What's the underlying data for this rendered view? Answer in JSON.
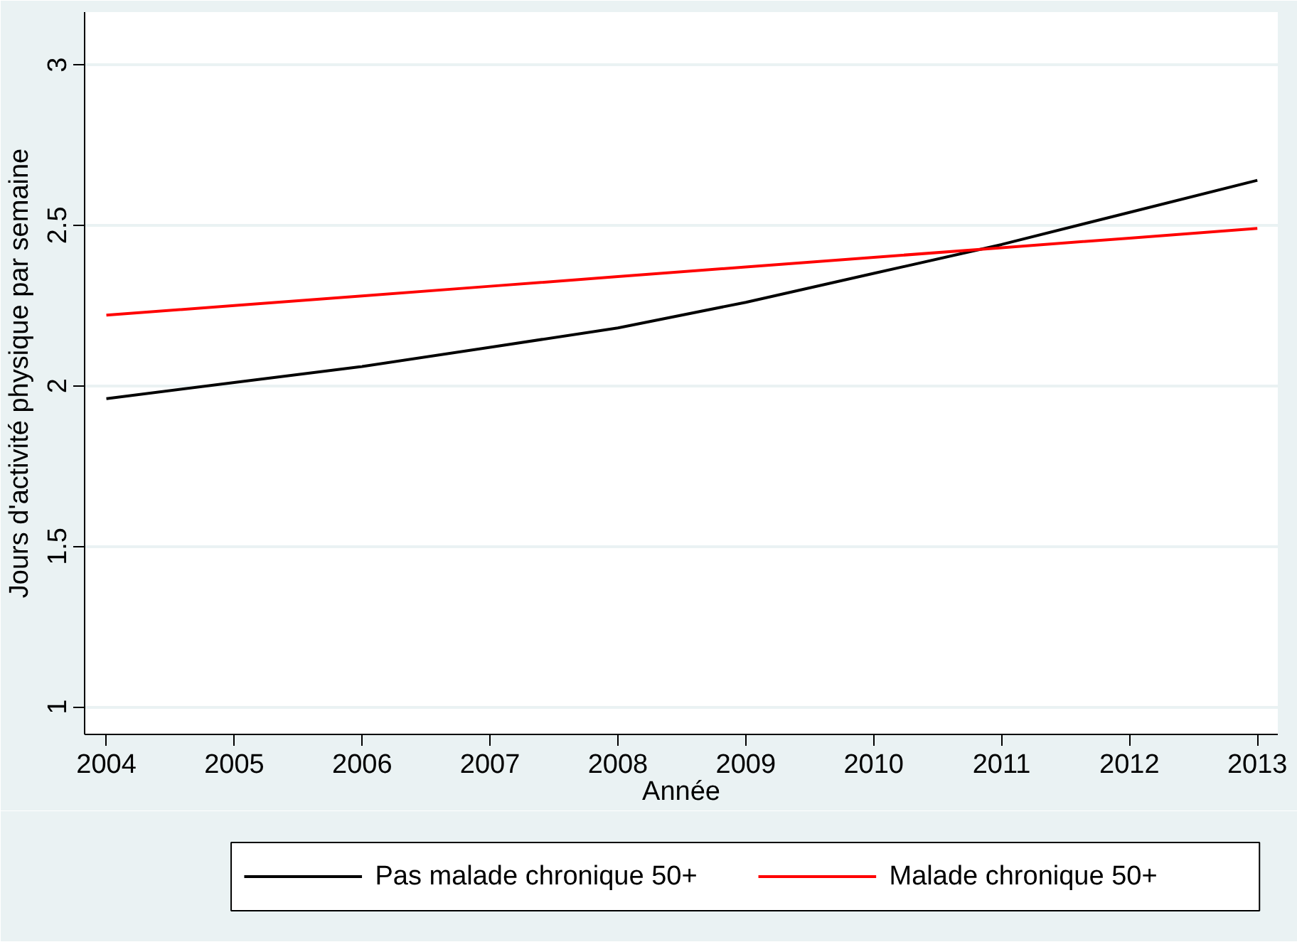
{
  "chart_data": {
    "type": "line",
    "xlabel": "Année",
    "ylabel": "Jours d'activité physique par semaine",
    "x": [
      2004,
      2005,
      2006,
      2007,
      2008,
      2009,
      2010,
      2011,
      2012,
      2013
    ],
    "series": [
      {
        "name": "Pas malade chronique 50+",
        "color": "#000000",
        "values": [
          1.96,
          2.01,
          2.06,
          2.12,
          2.18,
          2.26,
          2.35,
          2.44,
          2.54,
          2.64
        ]
      },
      {
        "name": "Malade chronique 50+",
        "color": "#ff0000",
        "values": [
          2.22,
          2.25,
          2.28,
          2.31,
          2.34,
          2.37,
          2.4,
          2.43,
          2.46,
          2.49
        ]
      }
    ],
    "xlim": [
      2003.83,
      2013.16
    ],
    "ylim": [
      0.914,
      3.164
    ],
    "xticks": [
      2004,
      2005,
      2006,
      2007,
      2008,
      2009,
      2010,
      2011,
      2012,
      2013
    ],
    "yticks": [
      1,
      1.5,
      2,
      2.5,
      3
    ],
    "grid": "y",
    "legend": "bottom",
    "marker": "none",
    "line_style": "solid"
  }
}
